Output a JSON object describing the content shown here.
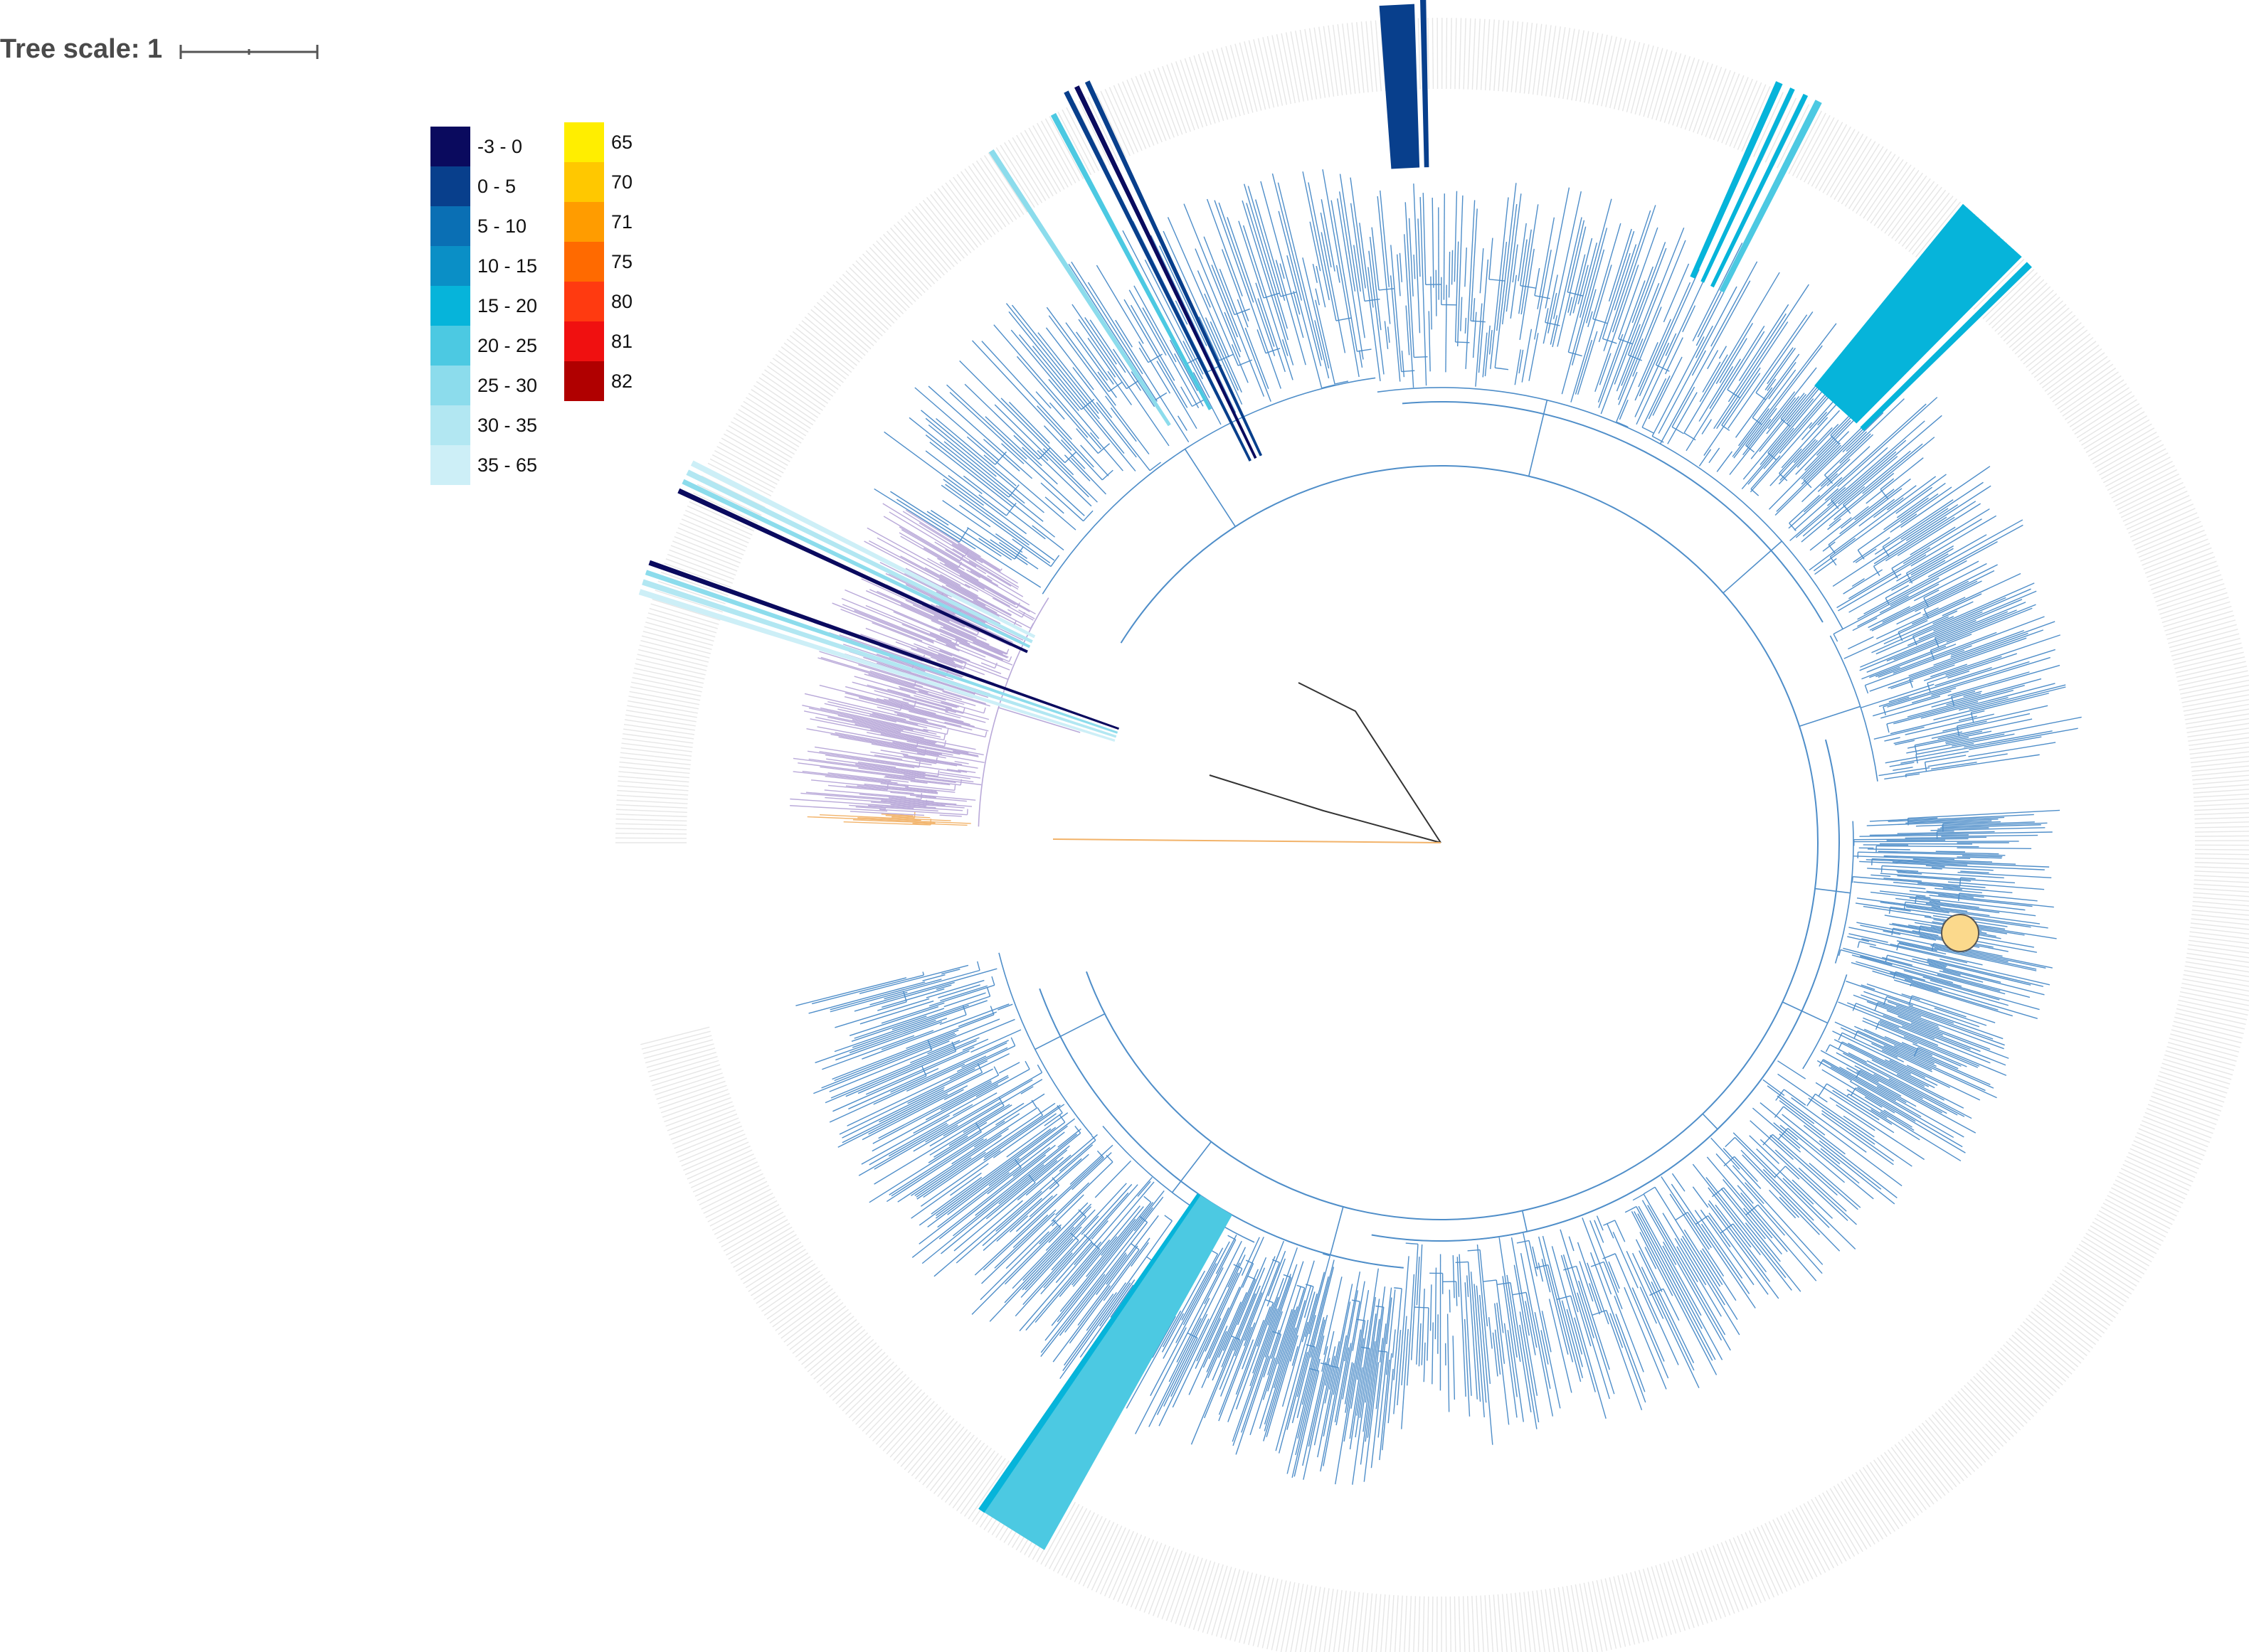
{
  "scale": {
    "label": "Tree scale: 1"
  },
  "legend_blue": [
    {
      "label": "-3 - 0",
      "color": "#0a0a5e"
    },
    {
      "label": "0 - 5",
      "color": "#083f8c"
    },
    {
      "label": "5 - 10",
      "color": "#0a6fb4"
    },
    {
      "label": "10 - 15",
      "color": "#0a8fc6"
    },
    {
      "label": "15 - 20",
      "color": "#06b4da"
    },
    {
      "label": "20 - 25",
      "color": "#4cc9e2"
    },
    {
      "label": "25 - 30",
      "color": "#8cdcec"
    },
    {
      "label": "30 - 35",
      "color": "#b2e7f2"
    },
    {
      "label": "35 - 65",
      "color": "#cdeff7"
    }
  ],
  "legend_heat": [
    {
      "label": "65",
      "color": "#ffee00"
    },
    {
      "label": "70",
      "color": "#ffc800"
    },
    {
      "label": "71",
      "color": "#ff9c00"
    },
    {
      "label": "75",
      "color": "#ff6a00"
    },
    {
      "label": "80",
      "color": "#ff3a10"
    },
    {
      "label": "81",
      "color": "#f01010"
    },
    {
      "label": "82",
      "color": "#b00000"
    }
  ],
  "tree": {
    "branch_colors": {
      "blue": "#4f8ec9",
      "purple": "#b9a9d9",
      "orange": "#f2b36a",
      "root": "#333333"
    },
    "highlight_color": "#fbd98c"
  }
}
